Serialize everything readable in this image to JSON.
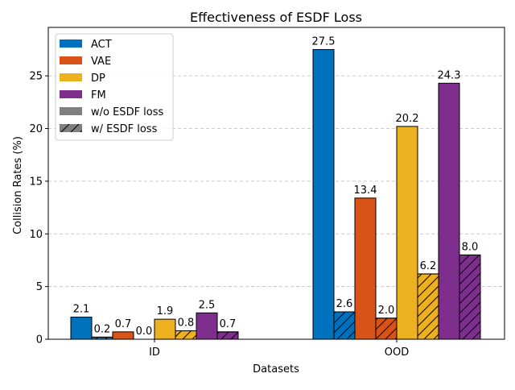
{
  "chart_data": {
    "type": "bar",
    "title": "Effectiveness of ESDF Loss",
    "xlabel": "Datasets",
    "ylabel": "Collision Rates (%)",
    "ylim": [
      0,
      29.6
    ],
    "yticks": [
      0,
      5,
      10,
      15,
      20,
      25
    ],
    "grid": "y dashed",
    "legend_placement": "top-left",
    "categories": [
      "ID",
      "OOD"
    ],
    "methods": [
      {
        "name": "ACT",
        "color": "#0072bd"
      },
      {
        "name": "VAE",
        "color": "#d95319"
      },
      {
        "name": "DP",
        "color": "#edb120"
      },
      {
        "name": "FM",
        "color": "#7e2f8e"
      }
    ],
    "variants": [
      {
        "name": "w/o ESDF loss",
        "hatch": false
      },
      {
        "name": "w/ ESDF loss",
        "hatch": true
      }
    ],
    "series": [
      {
        "method": "ACT",
        "variant": "w/o ESDF loss",
        "values": [
          2.1,
          27.5
        ]
      },
      {
        "method": "ACT",
        "variant": "w/ ESDF loss",
        "values": [
          0.2,
          2.6
        ]
      },
      {
        "method": "VAE",
        "variant": "w/o ESDF loss",
        "values": [
          0.7,
          13.4
        ]
      },
      {
        "method": "VAE",
        "variant": "w/ ESDF loss",
        "values": [
          0.0,
          2.0
        ]
      },
      {
        "method": "DP",
        "variant": "w/o ESDF loss",
        "values": [
          1.9,
          20.2
        ]
      },
      {
        "method": "DP",
        "variant": "w/ ESDF loss",
        "values": [
          0.8,
          6.2
        ]
      },
      {
        "method": "FM",
        "variant": "w/o ESDF loss",
        "values": [
          2.5,
          24.3
        ]
      },
      {
        "method": "FM",
        "variant": "w/ ESDF loss",
        "values": [
          0.7,
          8.0
        ]
      }
    ]
  }
}
